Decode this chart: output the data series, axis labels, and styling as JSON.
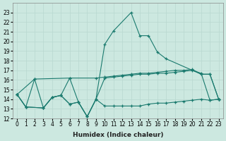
{
  "xlabel": "Humidex (Indice chaleur)",
  "line_color": "#1a7a6e",
  "bg_color": "#cce8e0",
  "grid_color": "#b8d8d0",
  "ylim": [
    12,
    24
  ],
  "xlim": [
    -0.5,
    23.5
  ],
  "yticks": [
    12,
    13,
    14,
    15,
    16,
    17,
    18,
    19,
    20,
    21,
    22,
    23
  ],
  "xticks": [
    0,
    1,
    2,
    3,
    4,
    5,
    6,
    7,
    8,
    9,
    10,
    11,
    12,
    13,
    14,
    15,
    16,
    17,
    18,
    19,
    20,
    21,
    22,
    23
  ],
  "series_peak_x": [
    0,
    1,
    2,
    3,
    4,
    5,
    6,
    7,
    8,
    9,
    10,
    11,
    13,
    14,
    15,
    16,
    17,
    21,
    22,
    23
  ],
  "series_peak_y": [
    14.5,
    13.2,
    16.1,
    13.1,
    14.2,
    14.4,
    16.2,
    13.7,
    12.2,
    14.0,
    19.7,
    21.1,
    23.0,
    20.6,
    20.6,
    18.9,
    18.2,
    16.6,
    16.6,
    14.0
  ],
  "series_hi_x": [
    0,
    2,
    6,
    9,
    10,
    11,
    12,
    13,
    14,
    15,
    16,
    17,
    18,
    19,
    20,
    21,
    22,
    23
  ],
  "series_hi_y": [
    14.5,
    16.1,
    16.2,
    16.2,
    16.3,
    16.4,
    16.5,
    16.6,
    16.7,
    16.7,
    16.8,
    16.9,
    17.0,
    17.0,
    17.1,
    16.6,
    16.6,
    14.0
  ],
  "series_mid_x": [
    0,
    1,
    3,
    4,
    5,
    6,
    7,
    8,
    9,
    10,
    11,
    12,
    13,
    14,
    15,
    16,
    17,
    18,
    19,
    20,
    21,
    22,
    23
  ],
  "series_mid_y": [
    14.5,
    13.2,
    13.1,
    14.2,
    14.4,
    13.5,
    13.7,
    12.2,
    14.0,
    16.2,
    16.3,
    16.4,
    16.5,
    16.6,
    16.6,
    16.7,
    16.7,
    16.8,
    16.9,
    17.0,
    16.7,
    13.9,
    14.0
  ],
  "series_low_x": [
    0,
    1,
    3,
    4,
    5,
    6,
    7,
    8,
    9,
    10,
    11,
    12,
    13,
    14,
    15,
    16,
    17,
    18,
    19,
    20,
    21,
    22,
    23
  ],
  "series_low_y": [
    14.5,
    13.2,
    13.1,
    14.2,
    14.4,
    13.5,
    13.7,
    12.2,
    14.0,
    13.3,
    13.3,
    13.3,
    13.3,
    13.3,
    13.5,
    13.6,
    13.6,
    13.7,
    13.8,
    13.9,
    14.0,
    13.9,
    14.0
  ]
}
